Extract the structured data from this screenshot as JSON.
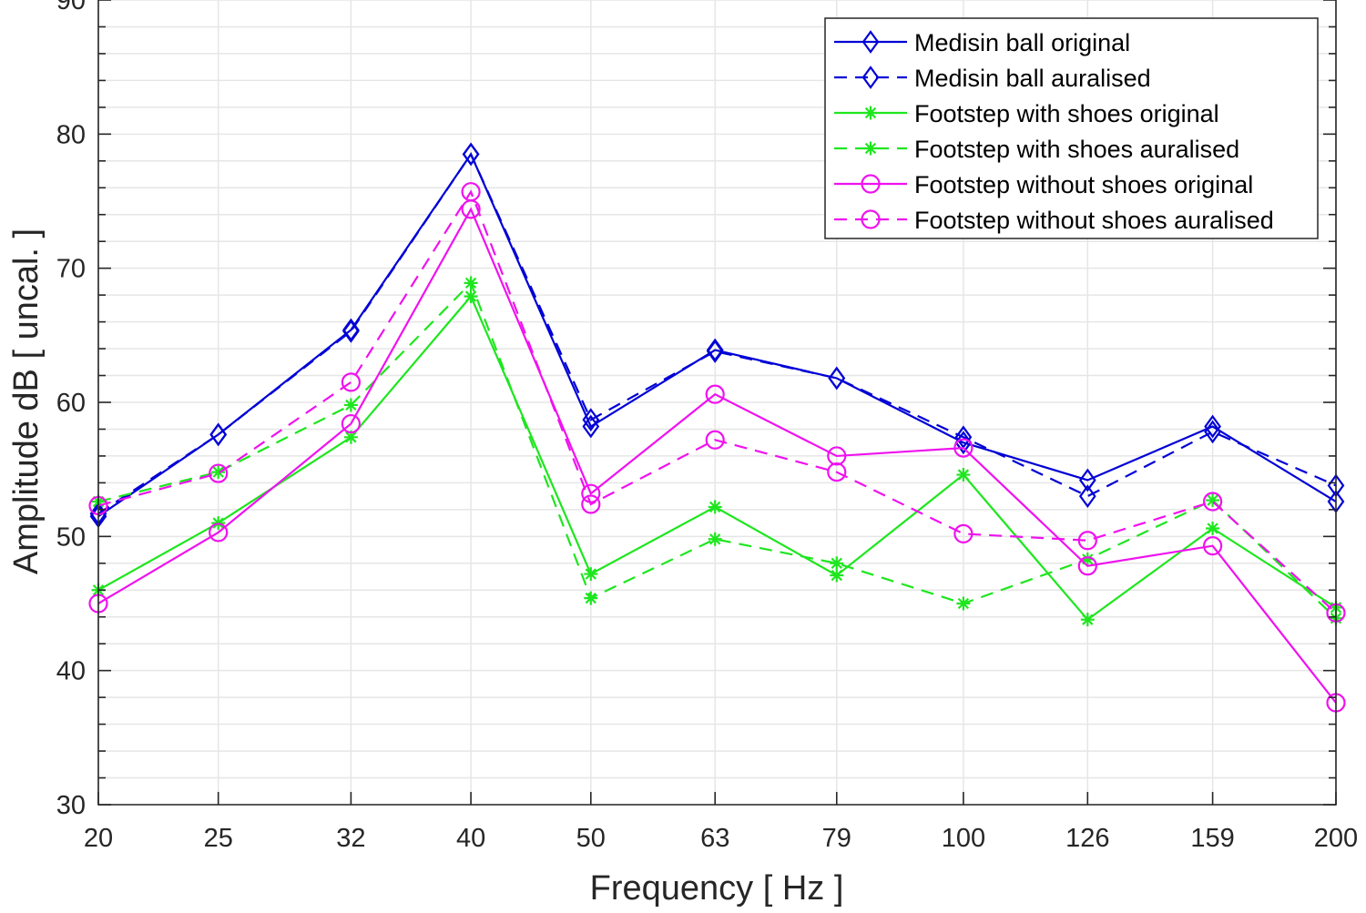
{
  "chart_data": {
    "type": "line",
    "title": "",
    "xlabel": "Frequency [ Hz ]",
    "ylabel": "Amplitude dB [ uncal. ]",
    "x_scale": "log",
    "xlim": [
      20,
      200
    ],
    "ylim": [
      30,
      90
    ],
    "x_ticks": [
      20,
      25,
      32,
      40,
      50,
      63,
      79,
      100,
      126,
      159,
      200
    ],
    "x_tick_labels": [
      "20",
      "25",
      "32",
      "40",
      "50",
      "63",
      "79",
      "100",
      "126",
      "159",
      "200"
    ],
    "y_ticks": [
      30,
      40,
      50,
      60,
      70,
      80,
      90
    ],
    "y_tick_labels": [
      "30",
      "40",
      "50",
      "60",
      "70",
      "80",
      "90"
    ],
    "grid": true,
    "legend_position": "top-right",
    "x": [
      20,
      25,
      32,
      40,
      50,
      63,
      79,
      100,
      126,
      159,
      200
    ],
    "series": [
      {
        "name": "Medisin ball original",
        "color": "#0000d6",
        "dash": "solid",
        "marker": "diamond",
        "values": [
          51.5,
          57.6,
          65.4,
          78.5,
          58.2,
          63.9,
          61.8,
          57.0,
          54.2,
          58.2,
          52.6
        ]
      },
      {
        "name": "Medisin ball auralised",
        "color": "#0000d6",
        "dash": "dashed",
        "marker": "diamond",
        "values": [
          51.7,
          57.6,
          65.3,
          78.5,
          58.7,
          63.8,
          61.8,
          57.4,
          53.0,
          57.8,
          53.8
        ]
      },
      {
        "name": "Footstep with shoes original",
        "color": "#1ee61e",
        "dash": "solid",
        "marker": "asterisk",
        "values": [
          46.0,
          51.0,
          57.4,
          67.9,
          47.2,
          52.2,
          47.1,
          54.6,
          43.8,
          50.6,
          44.7
        ]
      },
      {
        "name": "Footstep with shoes auralised",
        "color": "#1ee61e",
        "dash": "dashed",
        "marker": "asterisk",
        "values": [
          52.6,
          54.8,
          59.8,
          68.9,
          45.4,
          49.8,
          48.0,
          45.0,
          48.3,
          52.7,
          43.9
        ]
      },
      {
        "name": "Footstep without shoes original",
        "color": "#ef12ef",
        "dash": "solid",
        "marker": "circle",
        "values": [
          45.0,
          50.3,
          58.4,
          74.4,
          53.2,
          60.6,
          56.0,
          56.6,
          47.8,
          49.3,
          37.6
        ]
      },
      {
        "name": "Footstep without shoes auralised",
        "color": "#ef12ef",
        "dash": "dashed",
        "marker": "circle",
        "values": [
          52.3,
          54.7,
          61.5,
          75.7,
          52.4,
          57.2,
          54.8,
          50.2,
          49.7,
          52.6,
          44.3
        ]
      }
    ]
  }
}
